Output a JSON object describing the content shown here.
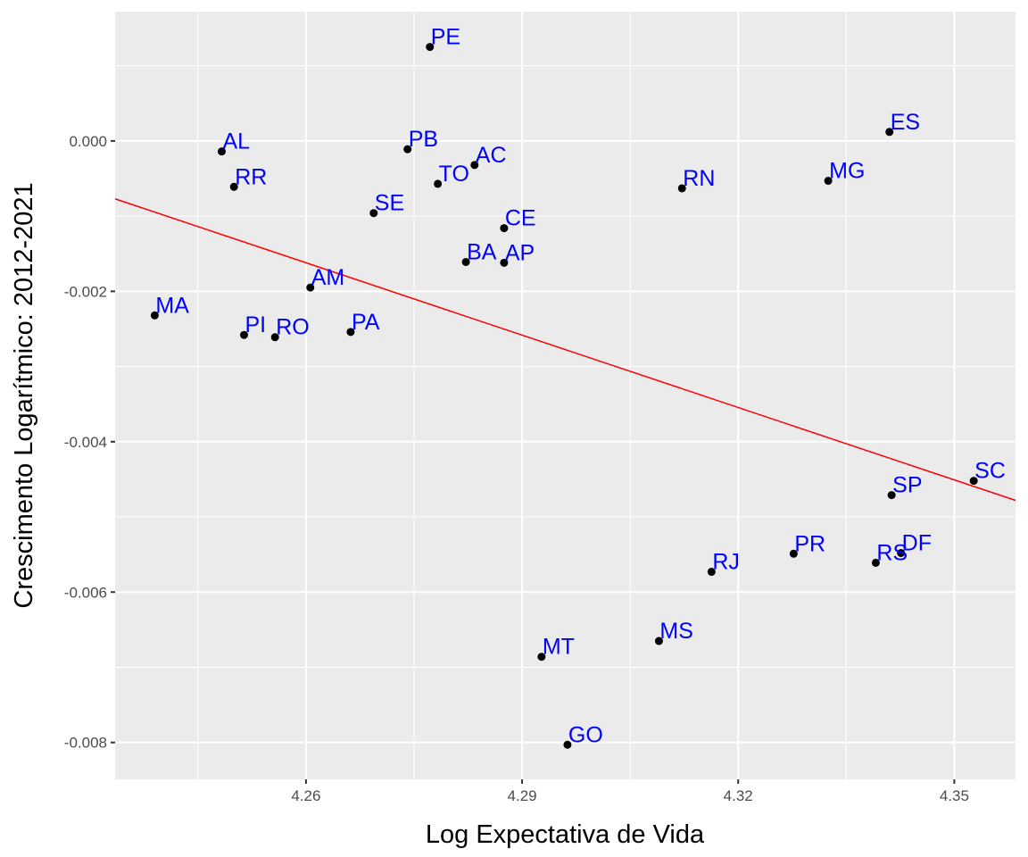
{
  "chart_data": {
    "type": "scatter",
    "xlabel": "Log Expectativa de Vida",
    "ylabel": "Crescimento Logarítmico: 2012-2021",
    "xlim": [
      4.2335,
      4.3585
    ],
    "ylim": [
      -0.00849,
      0.00172
    ],
    "x_ticks": [
      4.26,
      4.29,
      4.32,
      4.35
    ],
    "x_tick_labels": [
      "4.26",
      "4.29",
      "4.32",
      "4.35"
    ],
    "y_ticks": [
      0.0,
      -0.002,
      -0.004,
      -0.006,
      -0.008
    ],
    "y_tick_labels": [
      "0.000",
      "-0.002",
      "-0.004",
      "-0.006",
      "-0.008"
    ],
    "grid": true,
    "background": "#ebebeb",
    "grid_color": "#ffffff",
    "point_color": "#000000",
    "label_color": "#0000ff",
    "points": [
      {
        "label": "PE",
        "x": 4.2772,
        "y": 0.00125
      },
      {
        "label": "AL",
        "x": 4.2483,
        "y": -0.00014
      },
      {
        "label": "PB",
        "x": 4.2741,
        "y": -0.00011
      },
      {
        "label": "AC",
        "x": 4.2834,
        "y": -0.00032
      },
      {
        "label": "TO",
        "x": 4.2783,
        "y": -0.00057
      },
      {
        "label": "RR",
        "x": 4.25,
        "y": -0.00061
      },
      {
        "label": "ES",
        "x": 4.341,
        "y": 0.00012
      },
      {
        "label": "MG",
        "x": 4.3325,
        "y": -0.00053
      },
      {
        "label": "RN",
        "x": 4.3122,
        "y": -0.00063
      },
      {
        "label": "SE",
        "x": 4.2694,
        "y": -0.00096
      },
      {
        "label": "CE",
        "x": 4.2875,
        "y": -0.00116
      },
      {
        "label": "BA",
        "x": 4.2822,
        "y": -0.00161
      },
      {
        "label": "AP",
        "x": 4.2875,
        "y": -0.00162
      },
      {
        "label": "AM",
        "x": 4.2606,
        "y": -0.00195
      },
      {
        "label": "MA",
        "x": 4.239,
        "y": -0.00232
      },
      {
        "label": "PI",
        "x": 4.2514,
        "y": -0.00258
      },
      {
        "label": "RO",
        "x": 4.2557,
        "y": -0.00261
      },
      {
        "label": "PA",
        "x": 4.2662,
        "y": -0.00254
      },
      {
        "label": "SC",
        "x": 4.3527,
        "y": -0.00452
      },
      {
        "label": "SP",
        "x": 4.3413,
        "y": -0.00471
      },
      {
        "label": "DF",
        "x": 4.3426,
        "y": -0.00548
      },
      {
        "label": "PR",
        "x": 4.3277,
        "y": -0.00549
      },
      {
        "label": "RS",
        "x": 4.3391,
        "y": -0.00561
      },
      {
        "label": "RJ",
        "x": 4.3163,
        "y": -0.00573
      },
      {
        "label": "MS",
        "x": 4.309,
        "y": -0.00665
      },
      {
        "label": "MT",
        "x": 4.2927,
        "y": -0.00686
      },
      {
        "label": "GO",
        "x": 4.2963,
        "y": -0.00803
      }
    ],
    "trend_line": {
      "color": "#ff0000",
      "x": [
        4.2335,
        4.3585
      ],
      "y": [
        -0.00077,
        -0.00478
      ]
    }
  }
}
